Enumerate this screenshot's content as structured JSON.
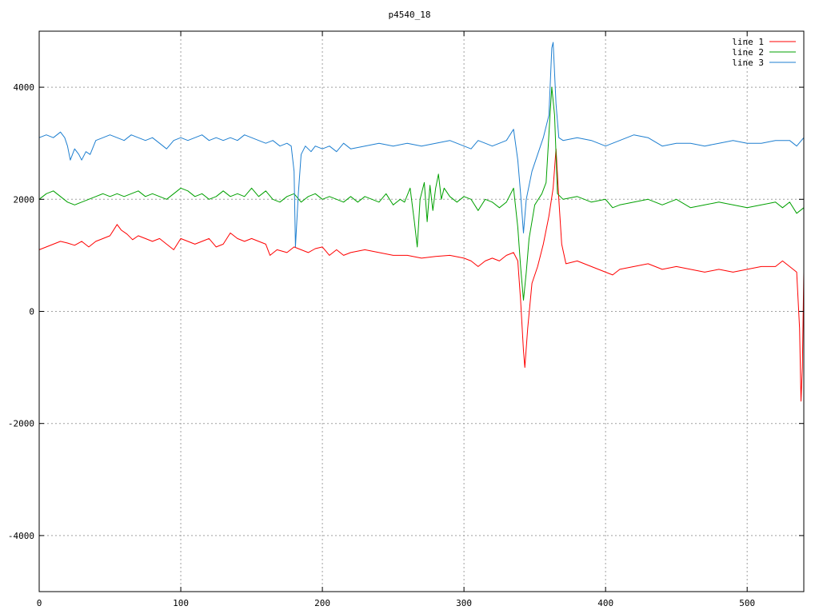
{
  "chart_data": {
    "type": "line",
    "title": "p4540_18",
    "xlim": [
      0,
      540
    ],
    "ylim": [
      -5000,
      5000
    ],
    "x_ticks": [
      0,
      100,
      200,
      300,
      400,
      500
    ],
    "y_ticks": [
      -4000,
      -2000,
      0,
      2000,
      4000
    ],
    "y_tick_labels": [
      "-4000",
      "-2000",
      "0",
      "2000",
      "4000"
    ],
    "grid": true,
    "legend_position": "top-right",
    "series": [
      {
        "name": "line 1",
        "color": "#ff0000",
        "points": [
          [
            0,
            1100
          ],
          [
            5,
            1150
          ],
          [
            10,
            1200
          ],
          [
            15,
            1250
          ],
          [
            20,
            1220
          ],
          [
            25,
            1180
          ],
          [
            30,
            1250
          ],
          [
            35,
            1150
          ],
          [
            40,
            1250
          ],
          [
            45,
            1300
          ],
          [
            50,
            1350
          ],
          [
            55,
            1550
          ],
          [
            58,
            1450
          ],
          [
            62,
            1380
          ],
          [
            66,
            1280
          ],
          [
            70,
            1350
          ],
          [
            75,
            1300
          ],
          [
            80,
            1250
          ],
          [
            85,
            1300
          ],
          [
            90,
            1200
          ],
          [
            95,
            1100
          ],
          [
            100,
            1300
          ],
          [
            105,
            1250
          ],
          [
            110,
            1200
          ],
          [
            115,
            1250
          ],
          [
            120,
            1300
          ],
          [
            125,
            1150
          ],
          [
            130,
            1200
          ],
          [
            135,
            1400
          ],
          [
            140,
            1300
          ],
          [
            145,
            1250
          ],
          [
            150,
            1300
          ],
          [
            155,
            1250
          ],
          [
            160,
            1200
          ],
          [
            163,
            1000
          ],
          [
            168,
            1100
          ],
          [
            175,
            1050
          ],
          [
            180,
            1150
          ],
          [
            185,
            1100
          ],
          [
            190,
            1050
          ],
          [
            195,
            1120
          ],
          [
            200,
            1150
          ],
          [
            205,
            1000
          ],
          [
            210,
            1100
          ],
          [
            215,
            1000
          ],
          [
            220,
            1050
          ],
          [
            230,
            1100
          ],
          [
            240,
            1050
          ],
          [
            250,
            1000
          ],
          [
            260,
            1000
          ],
          [
            270,
            950
          ],
          [
            280,
            980
          ],
          [
            290,
            1000
          ],
          [
            300,
            950
          ],
          [
            305,
            900
          ],
          [
            310,
            800
          ],
          [
            315,
            900
          ],
          [
            320,
            950
          ],
          [
            325,
            900
          ],
          [
            330,
            1000
          ],
          [
            335,
            1050
          ],
          [
            338,
            900
          ],
          [
            340,
            200
          ],
          [
            342,
            -700
          ],
          [
            343,
            -1000
          ],
          [
            345,
            -300
          ],
          [
            348,
            500
          ],
          [
            352,
            800
          ],
          [
            356,
            1200
          ],
          [
            360,
            1700
          ],
          [
            363,
            2200
          ],
          [
            365,
            2900
          ],
          [
            367,
            2000
          ],
          [
            369,
            1200
          ],
          [
            372,
            850
          ],
          [
            380,
            900
          ],
          [
            390,
            800
          ],
          [
            400,
            700
          ],
          [
            405,
            650
          ],
          [
            410,
            750
          ],
          [
            420,
            800
          ],
          [
            430,
            850
          ],
          [
            440,
            750
          ],
          [
            450,
            800
          ],
          [
            460,
            750
          ],
          [
            470,
            700
          ],
          [
            480,
            750
          ],
          [
            490,
            700
          ],
          [
            500,
            750
          ],
          [
            510,
            800
          ],
          [
            520,
            800
          ],
          [
            525,
            900
          ],
          [
            530,
            800
          ],
          [
            535,
            700
          ],
          [
            537,
            -300
          ],
          [
            538,
            -1600
          ],
          [
            539,
            -1000
          ],
          [
            540,
            700
          ]
        ]
      },
      {
        "name": "line 2",
        "color": "#00a000",
        "points": [
          [
            0,
            2000
          ],
          [
            5,
            2100
          ],
          [
            10,
            2150
          ],
          [
            15,
            2050
          ],
          [
            20,
            1950
          ],
          [
            25,
            1900
          ],
          [
            30,
            1950
          ],
          [
            35,
            2000
          ],
          [
            40,
            2050
          ],
          [
            45,
            2100
          ],
          [
            50,
            2050
          ],
          [
            55,
            2100
          ],
          [
            60,
            2050
          ],
          [
            65,
            2100
          ],
          [
            70,
            2150
          ],
          [
            75,
            2050
          ],
          [
            80,
            2100
          ],
          [
            85,
            2050
          ],
          [
            90,
            2000
          ],
          [
            95,
            2100
          ],
          [
            100,
            2200
          ],
          [
            105,
            2150
          ],
          [
            110,
            2050
          ],
          [
            115,
            2100
          ],
          [
            120,
            2000
          ],
          [
            125,
            2050
          ],
          [
            130,
            2150
          ],
          [
            135,
            2050
          ],
          [
            140,
            2100
          ],
          [
            145,
            2050
          ],
          [
            150,
            2200
          ],
          [
            155,
            2050
          ],
          [
            160,
            2150
          ],
          [
            165,
            2000
          ],
          [
            170,
            1950
          ],
          [
            175,
            2050
          ],
          [
            180,
            2100
          ],
          [
            185,
            1950
          ],
          [
            190,
            2050
          ],
          [
            195,
            2100
          ],
          [
            200,
            2000
          ],
          [
            205,
            2050
          ],
          [
            210,
            2000
          ],
          [
            215,
            1950
          ],
          [
            220,
            2050
          ],
          [
            225,
            1950
          ],
          [
            230,
            2050
          ],
          [
            235,
            2000
          ],
          [
            240,
            1950
          ],
          [
            245,
            2100
          ],
          [
            250,
            1900
          ],
          [
            255,
            2000
          ],
          [
            258,
            1950
          ],
          [
            262,
            2200
          ],
          [
            265,
            1600
          ],
          [
            267,
            1150
          ],
          [
            269,
            2000
          ],
          [
            272,
            2300
          ],
          [
            274,
            1600
          ],
          [
            276,
            2250
          ],
          [
            278,
            1800
          ],
          [
            280,
            2200
          ],
          [
            282,
            2450
          ],
          [
            284,
            2000
          ],
          [
            286,
            2200
          ],
          [
            290,
            2050
          ],
          [
            295,
            1950
          ],
          [
            300,
            2050
          ],
          [
            305,
            2000
          ],
          [
            310,
            1800
          ],
          [
            315,
            2000
          ],
          [
            320,
            1950
          ],
          [
            325,
            1850
          ],
          [
            330,
            1950
          ],
          [
            335,
            2200
          ],
          [
            338,
            1500
          ],
          [
            340,
            800
          ],
          [
            342,
            200
          ],
          [
            344,
            700
          ],
          [
            346,
            1300
          ],
          [
            350,
            1900
          ],
          [
            355,
            2100
          ],
          [
            358,
            2300
          ],
          [
            361,
            3600
          ],
          [
            362,
            4000
          ],
          [
            364,
            3500
          ],
          [
            366,
            2100
          ],
          [
            370,
            2000
          ],
          [
            380,
            2050
          ],
          [
            390,
            1950
          ],
          [
            400,
            2000
          ],
          [
            405,
            1850
          ],
          [
            410,
            1900
          ],
          [
            420,
            1950
          ],
          [
            430,
            2000
          ],
          [
            440,
            1900
          ],
          [
            450,
            2000
          ],
          [
            460,
            1850
          ],
          [
            470,
            1900
          ],
          [
            480,
            1950
          ],
          [
            490,
            1900
          ],
          [
            500,
            1850
          ],
          [
            510,
            1900
          ],
          [
            520,
            1950
          ],
          [
            525,
            1850
          ],
          [
            530,
            1950
          ],
          [
            535,
            1750
          ],
          [
            540,
            1850
          ]
        ]
      },
      {
        "name": "line 3",
        "color": "#1e7fd0",
        "points": [
          [
            0,
            3100
          ],
          [
            5,
            3150
          ],
          [
            10,
            3100
          ],
          [
            15,
            3200
          ],
          [
            18,
            3100
          ],
          [
            20,
            2950
          ],
          [
            22,
            2700
          ],
          [
            25,
            2900
          ],
          [
            28,
            2800
          ],
          [
            30,
            2700
          ],
          [
            33,
            2850
          ],
          [
            36,
            2800
          ],
          [
            40,
            3050
          ],
          [
            45,
            3100
          ],
          [
            50,
            3150
          ],
          [
            55,
            3100
          ],
          [
            60,
            3050
          ],
          [
            65,
            3150
          ],
          [
            70,
            3100
          ],
          [
            75,
            3050
          ],
          [
            80,
            3100
          ],
          [
            85,
            3000
          ],
          [
            90,
            2900
          ],
          [
            95,
            3050
          ],
          [
            100,
            3100
          ],
          [
            105,
            3050
          ],
          [
            110,
            3100
          ],
          [
            115,
            3150
          ],
          [
            120,
            3050
          ],
          [
            125,
            3100
          ],
          [
            130,
            3050
          ],
          [
            135,
            3100
          ],
          [
            140,
            3050
          ],
          [
            145,
            3150
          ],
          [
            150,
            3100
          ],
          [
            155,
            3050
          ],
          [
            160,
            3000
          ],
          [
            165,
            3050
          ],
          [
            170,
            2950
          ],
          [
            175,
            3000
          ],
          [
            178,
            2950
          ],
          [
            180,
            2500
          ],
          [
            181,
            1150
          ],
          [
            183,
            2100
          ],
          [
            185,
            2800
          ],
          [
            188,
            2950
          ],
          [
            192,
            2850
          ],
          [
            195,
            2950
          ],
          [
            200,
            2900
          ],
          [
            205,
            2950
          ],
          [
            210,
            2850
          ],
          [
            215,
            3000
          ],
          [
            220,
            2900
          ],
          [
            230,
            2950
          ],
          [
            240,
            3000
          ],
          [
            250,
            2950
          ],
          [
            260,
            3000
          ],
          [
            270,
            2950
          ],
          [
            280,
            3000
          ],
          [
            290,
            3050
          ],
          [
            300,
            2950
          ],
          [
            305,
            2900
          ],
          [
            310,
            3050
          ],
          [
            315,
            3000
          ],
          [
            320,
            2950
          ],
          [
            325,
            3000
          ],
          [
            330,
            3050
          ],
          [
            335,
            3250
          ],
          [
            338,
            2700
          ],
          [
            340,
            2100
          ],
          [
            342,
            1400
          ],
          [
            344,
            2000
          ],
          [
            348,
            2500
          ],
          [
            352,
            2800
          ],
          [
            356,
            3100
          ],
          [
            360,
            3500
          ],
          [
            362,
            4700
          ],
          [
            363,
            4800
          ],
          [
            365,
            3700
          ],
          [
            367,
            3100
          ],
          [
            370,
            3050
          ],
          [
            380,
            3100
          ],
          [
            390,
            3050
          ],
          [
            400,
            2950
          ],
          [
            405,
            3000
          ],
          [
            410,
            3050
          ],
          [
            420,
            3150
          ],
          [
            430,
            3100
          ],
          [
            440,
            2950
          ],
          [
            450,
            3000
          ],
          [
            460,
            3000
          ],
          [
            470,
            2950
          ],
          [
            480,
            3000
          ],
          [
            490,
            3050
          ],
          [
            500,
            3000
          ],
          [
            510,
            3000
          ],
          [
            520,
            3050
          ],
          [
            530,
            3050
          ],
          [
            535,
            2950
          ],
          [
            540,
            3100
          ]
        ]
      }
    ]
  }
}
